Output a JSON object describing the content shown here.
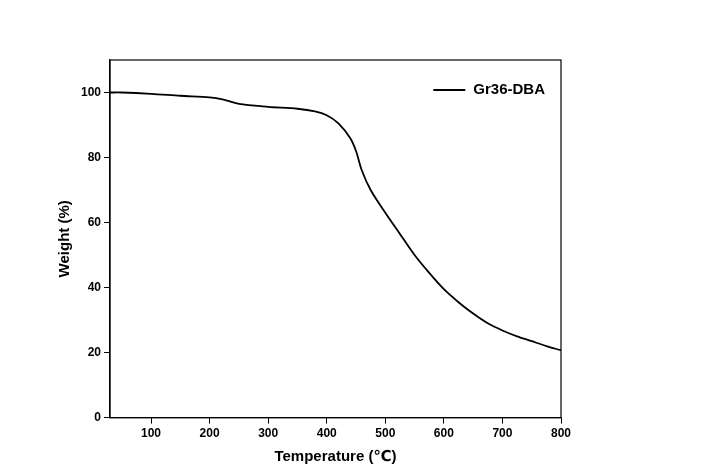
{
  "chart_data": {
    "type": "line",
    "x_label": "Temperature (℃)",
    "y_label": "Weight (%)",
    "xlim": [
      30,
      800
    ],
    "xticks": [
      100,
      200,
      300,
      400,
      500,
      600,
      700,
      800
    ],
    "ylim": [
      0,
      110
    ],
    "yticks": [
      0,
      20,
      40,
      60,
      80,
      100
    ],
    "grid": false,
    "legend": "upper right",
    "x": [
      30,
      50,
      100,
      150,
      200,
      220,
      250,
      300,
      350,
      380,
      400,
      420,
      440,
      450,
      460,
      475,
      500,
      525,
      550,
      575,
      600,
      625,
      650,
      675,
      700,
      725,
      750,
      775,
      800
    ],
    "series": [
      {
        "name": "Gr36-DBA",
        "color": "#000000",
        "line_style": "solid",
        "values": [
          100,
          100,
          99.6,
          99,
          98.5,
          98,
          96.5,
          95.6,
          95,
          94.2,
          93,
          90.5,
          86,
          82,
          76,
          70,
          63,
          56.5,
          50,
          44.5,
          39.5,
          35.5,
          32,
          29,
          26.8,
          25,
          23.5,
          22,
          20.7
        ]
      }
    ]
  }
}
